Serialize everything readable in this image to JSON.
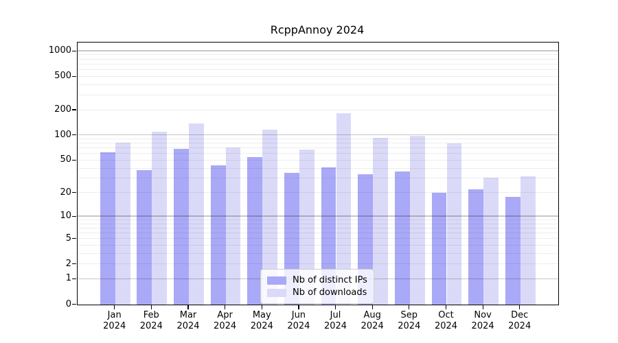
{
  "figure": {
    "title": "RcppAnnoy 2024"
  },
  "chart_data": {
    "type": "bar",
    "title": "RcppAnnoy 2024",
    "categories": [
      "Jan",
      "Feb",
      "Mar",
      "Apr",
      "May",
      "Jun",
      "Jul",
      "Aug",
      "Sep",
      "Oct",
      "Nov",
      "Dec"
    ],
    "x_tick_second_line": "2024",
    "series": [
      {
        "name": "Nb of distinct IPs",
        "color": "#a9a9f7",
        "values": [
          63,
          38,
          69,
          44,
          55,
          35,
          41,
          34,
          37,
          20,
          22,
          18
        ]
      },
      {
        "name": "Nb of downloads",
        "color": "#dadaf8",
        "values": [
          81,
          110,
          139,
          72,
          118,
          67,
          183,
          93,
          98,
          80,
          31,
          32
        ]
      }
    ],
    "yscale": "log1p",
    "yticks": [
      0,
      1,
      2,
      5,
      10,
      20,
      50,
      100,
      200,
      500,
      1000
    ],
    "ylim": [
      0,
      1280
    ],
    "grid": {
      "major_at": [
        1,
        10,
        100,
        1000
      ],
      "minor_per_decade": [
        2,
        3,
        4,
        5,
        6,
        7,
        8,
        9
      ]
    },
    "legend_position": "lower center",
    "xlabel": "",
    "ylabel": ""
  }
}
